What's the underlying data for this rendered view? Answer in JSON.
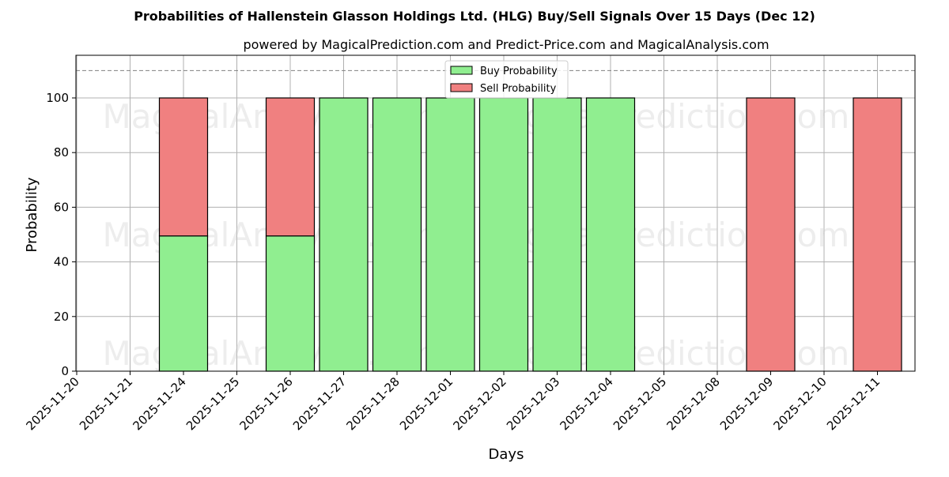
{
  "chart_data": {
    "type": "bar",
    "stacked": true,
    "title": "Probabilities of Hallenstein Glasson Holdings Ltd. (HLG) Buy/Sell Signals Over 15 Days (Dec 12)",
    "subtitle": "powered by MagicalPrediction.com and Predict-Price.com and MagicalAnalysis.com",
    "xlabel": "Days",
    "ylabel": "Probability",
    "ylim": [
      0,
      115
    ],
    "yticks": [
      0,
      20,
      40,
      60,
      80,
      100
    ],
    "reference_line": 110,
    "grid": true,
    "legend_position": "upper center",
    "categories": [
      "2025-11-20",
      "2025-11-21",
      "2025-11-24",
      "2025-11-25",
      "2025-11-26",
      "2025-11-27",
      "2025-11-28",
      "2025-12-01",
      "2025-12-02",
      "2025-12-03",
      "2025-12-04",
      "2025-12-05",
      "2025-12-08",
      "2025-12-09",
      "2025-12-10",
      "2025-12-11"
    ],
    "series": [
      {
        "name": "Buy Probability",
        "color": "#90ee90",
        "values": [
          null,
          null,
          49.5,
          null,
          49.5,
          100,
          100,
          100,
          100,
          100,
          100,
          null,
          null,
          0,
          null,
          0
        ]
      },
      {
        "name": "Sell Probability",
        "color": "#f08080",
        "values": [
          null,
          null,
          50.5,
          null,
          50.5,
          0,
          0,
          0,
          0,
          0,
          0,
          null,
          null,
          100,
          null,
          100
        ]
      }
    ],
    "watermarks": [
      "MagicalAnalysis.com",
      "MagicalPrediction.com"
    ]
  }
}
